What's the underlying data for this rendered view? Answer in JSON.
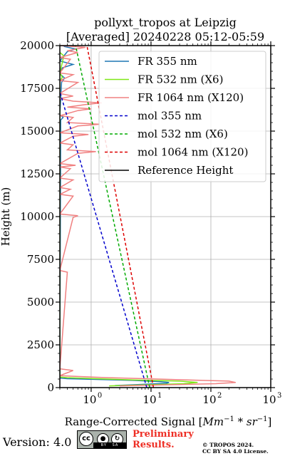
{
  "chart_data": {
    "type": "line",
    "title": "pollyxt_tropos at Leipzig",
    "subtitle": "[Averaged] 20240228 05:12-05:59",
    "xlabel_prefix": "Range-Corrected Signal [",
    "xlabel_math": "Mm",
    "xlabel_exp1": "−1",
    "xlabel_mid": " * ",
    "xlabel_math2": "sr",
    "xlabel_exp2": "−1",
    "xlabel_suffix": "]",
    "ylabel": "Height (m)",
    "x_scale": "log",
    "xlim": [
      0.3,
      1000
    ],
    "ylim": [
      0,
      20000
    ],
    "x_ticks": [
      1,
      10,
      100,
      1000
    ],
    "x_tick_labels": [
      "10",
      "10",
      "10",
      "10"
    ],
    "x_tick_exps": [
      "0",
      "1",
      "2",
      "3"
    ],
    "y_ticks": [
      0,
      2500,
      5000,
      7500,
      10000,
      12500,
      15000,
      17500,
      20000
    ],
    "y_tick_labels": [
      "0",
      "2500",
      "5000",
      "7500",
      "10000",
      "12500",
      "15000",
      "17500",
      "20000"
    ],
    "grid": true,
    "legend_position": "top-right",
    "series": [
      {
        "name": "FR 355 nm",
        "color": "#1f77b4",
        "style": "solid",
        "points": [
          [
            2.5,
            120
          ],
          [
            18,
            250
          ],
          [
            20,
            300
          ],
          [
            14,
            350
          ],
          [
            5,
            420
          ],
          [
            1.2,
            480
          ],
          [
            0.4,
            520
          ],
          [
            0.3,
            560
          ],
          [
            0.31,
            15650
          ],
          [
            0.34,
            15800
          ],
          [
            0.3,
            15950
          ],
          [
            0.32,
            17850
          ],
          [
            0.36,
            18100
          ],
          [
            0.3,
            18350
          ],
          [
            0.33,
            18700
          ],
          [
            0.5,
            18900
          ],
          [
            0.3,
            19100
          ],
          [
            0.4,
            19650
          ],
          [
            0.55,
            19800
          ],
          [
            0.35,
            19950
          ]
        ]
      },
      {
        "name": "FR 532 nm (X6)",
        "color": "#7fe817",
        "style": "solid",
        "points": [
          [
            2,
            100
          ],
          [
            35,
            230
          ],
          [
            60,
            300
          ],
          [
            30,
            380
          ],
          [
            5,
            450
          ],
          [
            1.2,
            520
          ],
          [
            0.4,
            580
          ],
          [
            0.3,
            620
          ],
          [
            0.3,
            17950
          ],
          [
            0.33,
            18150
          ],
          [
            0.3,
            18400
          ],
          [
            0.35,
            19400
          ],
          [
            0.3,
            19600
          ]
        ]
      },
      {
        "name": "FR 1064 nm (X120)",
        "color": "#f08080",
        "style": "solid",
        "points": [
          [
            3,
            100
          ],
          [
            120,
            230
          ],
          [
            260,
            300
          ],
          [
            200,
            380
          ],
          [
            40,
            450
          ],
          [
            8,
            520
          ],
          [
            2,
            580
          ],
          [
            0.6,
            650
          ],
          [
            0.3,
            700
          ],
          [
            0.5,
            1000
          ],
          [
            0.3,
            1100
          ],
          [
            0.4,
            6750
          ],
          [
            0.3,
            6850
          ],
          [
            0.5,
            9950
          ],
          [
            0.6,
            10050
          ],
          [
            0.3,
            10150
          ],
          [
            0.5,
            11200
          ],
          [
            0.3,
            11300
          ],
          [
            0.45,
            11600
          ],
          [
            0.3,
            11700
          ],
          [
            0.5,
            12150
          ],
          [
            0.3,
            12250
          ],
          [
            0.45,
            12800
          ],
          [
            0.3,
            12900
          ],
          [
            0.55,
            13000
          ],
          [
            0.3,
            13100
          ],
          [
            0.6,
            13700
          ],
          [
            1.2,
            13800
          ],
          [
            0.4,
            13900
          ],
          [
            0.5,
            14200
          ],
          [
            0.3,
            14300
          ],
          [
            0.5,
            14700
          ],
          [
            0.9,
            14800
          ],
          [
            0.3,
            14900
          ],
          [
            0.6,
            15300
          ],
          [
            1.4,
            15400
          ],
          [
            0.4,
            15500
          ],
          [
            0.5,
            15800
          ],
          [
            0.3,
            15900
          ],
          [
            0.6,
            16200
          ],
          [
            1.0,
            16300
          ],
          [
            0.4,
            16400
          ],
          [
            0.8,
            16550
          ],
          [
            1.5,
            16650
          ],
          [
            0.5,
            16750
          ],
          [
            0.3,
            16900
          ],
          [
            0.5,
            17050
          ],
          [
            0.3,
            17200
          ],
          [
            0.6,
            17850
          ],
          [
            0.3,
            17950
          ],
          [
            0.5,
            18300
          ],
          [
            0.3,
            18400
          ],
          [
            0.45,
            19200
          ],
          [
            0.3,
            19300
          ],
          [
            0.6,
            19600
          ],
          [
            0.4,
            19700
          ],
          [
            0.8,
            19900
          ],
          [
            0.3,
            20000
          ]
        ]
      },
      {
        "name": "mol 355 nm",
        "color": "#0000cc",
        "style": "dashed",
        "points": [
          [
            8.5,
            0
          ],
          [
            0.3,
            17300
          ]
        ]
      },
      {
        "name": "mol 532 nm (X6)",
        "color": "#00aa00",
        "style": "dashed",
        "points": [
          [
            9.5,
            0
          ],
          [
            0.55,
            20000
          ]
        ]
      },
      {
        "name": "mol 1064 nm (X120)",
        "color": "#dd0000",
        "style": "dashed",
        "points": [
          [
            11,
            0
          ],
          [
            0.85,
            20000
          ]
        ]
      },
      {
        "name": "Reference Height",
        "color": "#000000",
        "style": "solid",
        "points": []
      }
    ]
  },
  "footer": {
    "version": "Version: 4.0",
    "cc_by": "BY",
    "cc_sa": "SA",
    "cc_letters": "cc",
    "prelim_line1": "Preliminary",
    "prelim_line2": "Results.",
    "copyright_line1": "© TROPOS 2024.",
    "copyright_line2": "CC BY SA 4.0 License."
  }
}
